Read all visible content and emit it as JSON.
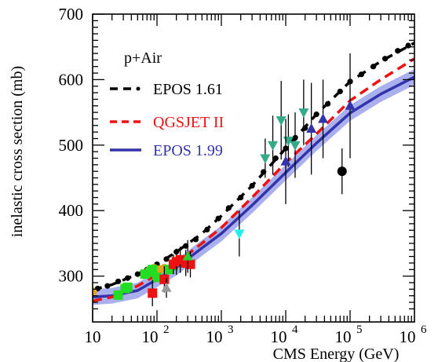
{
  "chart_data": {
    "type": "line",
    "annotation": "p+Air",
    "xlabel": "CMS Energy (GeV)",
    "ylabel": "inelastic cross section (mb)",
    "xscale": "log",
    "xlim": [
      10,
      1000000
    ],
    "ylim": [
      230,
      700
    ],
    "y_ticks": [
      300,
      400,
      500,
      600,
      700
    ],
    "x_ticks": [
      {
        "value": 10,
        "base": "10",
        "exp": ""
      },
      {
        "value": 100,
        "base": "10",
        "exp": "2"
      },
      {
        "value": 1000,
        "base": "10",
        "exp": "3"
      },
      {
        "value": 10000,
        "base": "10",
        "exp": "4"
      },
      {
        "value": 100000,
        "base": "10",
        "exp": "5"
      },
      {
        "value": 1000000,
        "base": "10",
        "exp": "6"
      }
    ],
    "legend_position": "top-left",
    "series": [
      {
        "name": "EPOS 1.61",
        "style": "dash-dot",
        "color": "#000000",
        "points": [
          [
            10,
            279
          ],
          [
            20,
            287
          ],
          [
            50,
            303
          ],
          [
            100,
            318
          ],
          [
            200,
            337
          ],
          [
            500,
            365
          ],
          [
            1000,
            392
          ],
          [
            3000,
            438
          ],
          [
            10000,
            495
          ],
          [
            30000,
            547
          ],
          [
            100000,
            597
          ],
          [
            300000,
            628
          ],
          [
            1000000,
            656
          ]
        ]
      },
      {
        "name": "QGSJET II",
        "style": "dashed",
        "color": "#ee1111",
        "points": [
          [
            10,
            262
          ],
          [
            20,
            268
          ],
          [
            50,
            285
          ],
          [
            100,
            302
          ],
          [
            200,
            320
          ],
          [
            500,
            350
          ],
          [
            1000,
            374
          ],
          [
            3000,
            420
          ],
          [
            10000,
            473
          ],
          [
            30000,
            517
          ],
          [
            100000,
            568
          ],
          [
            300000,
            600
          ],
          [
            1000000,
            632
          ]
        ]
      },
      {
        "name": "EPOS 1.99",
        "style": "solid",
        "color": "#3333aa",
        "band_color": "#aab0ee",
        "points": [
          [
            10,
            268
          ],
          [
            20,
            270
          ],
          [
            50,
            278
          ],
          [
            100,
            295
          ],
          [
            200,
            313
          ],
          [
            500,
            343
          ],
          [
            1000,
            365
          ],
          [
            3000,
            408
          ],
          [
            10000,
            458
          ],
          [
            30000,
            503
          ],
          [
            100000,
            549
          ],
          [
            300000,
            578
          ],
          [
            1000000,
            604
          ]
        ],
        "band_halfwidth": 12
      }
    ],
    "epos161_markers": [
      [
        12,
        281
      ],
      [
        17,
        285
      ],
      [
        25,
        292
      ],
      [
        35,
        297
      ],
      [
        50,
        303
      ],
      [
        70,
        310
      ],
      [
        100,
        318
      ],
      [
        140,
        326
      ],
      [
        200,
        337
      ],
      [
        280,
        346
      ],
      [
        400,
        356
      ],
      [
        600,
        371
      ],
      [
        900,
        388
      ],
      [
        1300,
        404
      ],
      [
        2000,
        420
      ],
      [
        3000,
        438
      ],
      [
        4500,
        459
      ],
      [
        7000,
        480
      ],
      [
        10000,
        495
      ],
      [
        14000,
        511
      ],
      [
        20000,
        526
      ],
      [
        30000,
        547
      ],
      [
        45000,
        563
      ],
      [
        70000,
        582
      ],
      [
        100000,
        597
      ],
      [
        150000,
        608
      ],
      [
        230000,
        620
      ],
      [
        350000,
        632
      ],
      [
        550000,
        644
      ],
      [
        800000,
        652
      ]
    ],
    "measurements": [
      {
        "group": "orange",
        "color": "#e8a020",
        "shape": "circle",
        "points": [
          [
            10,
            276
          ],
          [
            75,
            308
          ],
          [
            90,
            312
          ],
          [
            110,
            310
          ],
          [
            130,
            312
          ]
        ]
      },
      {
        "group": "green-squares",
        "color": "#22dd22",
        "shape": "square",
        "points": [
          [
            25,
            271
          ],
          [
            32,
            281
          ],
          [
            35,
            283
          ],
          [
            65,
            303
          ],
          [
            80,
            306
          ],
          [
            85,
            310
          ],
          [
            100,
            298
          ],
          [
            150,
            310
          ],
          [
            180,
            316
          ]
        ]
      },
      {
        "group": "red-squares",
        "color": "#ee1111",
        "shape": "square",
        "points": [
          [
            85,
            274,
            20
          ],
          [
            130,
            295,
            20
          ],
          [
            180,
            318,
            15
          ],
          [
            200,
            322,
            20
          ],
          [
            230,
            325,
            20
          ],
          [
            280,
            320,
            20
          ],
          [
            330,
            318,
            20
          ]
        ]
      },
      {
        "group": "gray-triangles",
        "color": "#999999",
        "shape": "triangle-up",
        "points": [
          [
            140,
            282,
            15
          ]
        ]
      },
      {
        "group": "green-triangles",
        "color": "#33cc33",
        "shape": "triangle-up",
        "points": [
          [
            300,
            330,
            25
          ]
        ]
      },
      {
        "group": "cyan-triangles",
        "color": "#22eeee",
        "shape": "triangle-down",
        "points": [
          [
            1900,
            365,
            35
          ]
        ]
      },
      {
        "group": "teal-triangles",
        "color": "#33aa88",
        "shape": "triangle-down",
        "points": [
          [
            4800,
            480,
            30
          ],
          [
            6300,
            500,
            45
          ],
          [
            8500,
            538,
            60
          ],
          [
            11000,
            507,
            40
          ],
          [
            14000,
            500,
            50
          ],
          [
            19000,
            550,
            50
          ]
        ]
      },
      {
        "group": "blue-triangles",
        "color": "#3333aa",
        "shape": "triangle-up",
        "points": [
          [
            10000,
            475,
            65
          ],
          [
            25000,
            525,
            70
          ],
          [
            38000,
            540,
            60
          ],
          [
            100000,
            560,
            80
          ]
        ]
      },
      {
        "group": "black-circle",
        "color": "#000000",
        "shape": "circle",
        "points": [
          [
            75000,
            460,
            35
          ]
        ]
      }
    ]
  }
}
